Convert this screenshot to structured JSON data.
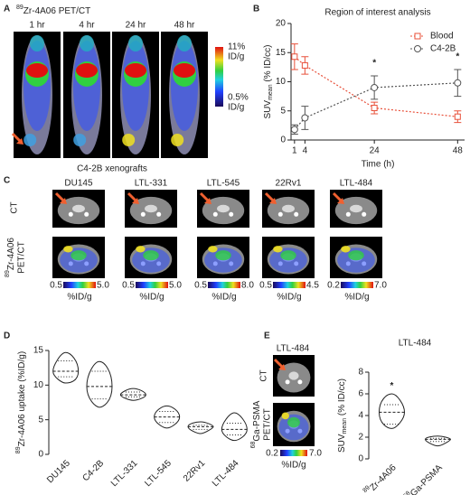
{
  "panel_a": {
    "letter": "A",
    "title_sup": "89",
    "title": "Zr-4A06 PET/CT",
    "timepoints": [
      "1 hr",
      "4 hr",
      "24 hr",
      "48 hr"
    ],
    "scale_max": "11%",
    "scale_max_unit": "ID/g",
    "scale_min": "0.5%",
    "scale_min_unit": "ID/g",
    "caption": "C4-2B xenografts"
  },
  "panel_c": {
    "letter": "C",
    "row_ct": "CT",
    "row_pet_sup": "89",
    "row_pet": "Zr-4A06",
    "row_pet2": "PET/CT",
    "columns": [
      {
        "name": "DU145",
        "scale_min": "0.5",
        "scale_max": "5.0",
        "unit": "%ID/g"
      },
      {
        "name": "LTL-331",
        "scale_min": "0.5",
        "scale_max": "5.0",
        "unit": "%ID/g"
      },
      {
        "name": "LTL-545",
        "scale_min": "0.5",
        "scale_max": "8.0",
        "unit": "%ID/g"
      },
      {
        "name": "22Rv1",
        "scale_min": "0.5",
        "scale_max": "4.5",
        "unit": "%ID/g"
      },
      {
        "name": "LTL-484",
        "scale_min": "0.2",
        "scale_max": "7.0",
        "unit": "%ID/g"
      }
    ]
  },
  "panel_e": {
    "letter": "E",
    "title": "LTL-484",
    "row_ct": "CT",
    "row_pet_sup": "68",
    "row_pet": "Ga-PSMA",
    "row_pet2": "PET/CT",
    "scale_min": "0.2",
    "scale_max": "7.0",
    "unit": "%ID/g"
  },
  "chart_data": [
    {
      "type": "line",
      "letter": "B",
      "title": "Region of interest analysis",
      "y_label": "SUV",
      "y_label_sub": "mean",
      "y_label_rest": " (% ID/cc)",
      "x_label": "Time (h)",
      "x": [
        1,
        4,
        24,
        48
      ],
      "xlim": [
        0,
        50
      ],
      "xticks": [
        1,
        4,
        24,
        48
      ],
      "ylim": [
        0,
        20
      ],
      "yticks": [
        0,
        5,
        10,
        15,
        20
      ],
      "legend": "upper right",
      "series": [
        {
          "name": "Blood",
          "color": "#e8503a",
          "marker": "square",
          "values": [
            14.3,
            12.8,
            5.5,
            4.0
          ],
          "errors": [
            2.2,
            1.5,
            1.0,
            1.0
          ]
        },
        {
          "name": "C4-2B",
          "color": "#555555",
          "marker": "circle",
          "values": [
            1.8,
            3.8,
            9.0,
            9.8
          ],
          "errors": [
            0.8,
            2.0,
            2.0,
            2.3
          ]
        }
      ],
      "annotations": [
        {
          "text": "*",
          "x": 24,
          "y": 13.2
        },
        {
          "text": "*",
          "x": 48,
          "y": 14.3
        }
      ]
    },
    {
      "type": "violin",
      "letter": "D",
      "y_label_sup": "89",
      "y_label": "Zr-4A06 uptake (%ID/g)",
      "categories": [
        "DU145",
        "C4-2B",
        "LTL-331",
        "LTL-545",
        "22Rv1",
        "LTL-484"
      ],
      "min": [
        10.3,
        6.8,
        7.8,
        3.8,
        3.0,
        2.0
      ],
      "q1": [
        11.2,
        8.0,
        8.3,
        4.6,
        3.6,
        2.8
      ],
      "median": [
        12.0,
        9.8,
        8.6,
        5.4,
        4.0,
        3.6
      ],
      "q3": [
        13.5,
        12.0,
        9.0,
        6.2,
        4.2,
        4.5
      ],
      "max": [
        14.7,
        13.4,
        9.5,
        7.0,
        4.7,
        6.0
      ],
      "ylim": [
        0,
        15
      ],
      "yticks": [
        0,
        5,
        10,
        15
      ],
      "color": "#222222"
    },
    {
      "type": "violin",
      "title": "LTL-484",
      "y_label": "SUV",
      "y_label_sub": "mean",
      "y_label_rest": " (% ID/cc)",
      "category_superscripts": [
        "89",
        "68"
      ],
      "categories": [
        "Zr-4A06",
        "Ga-PSMA"
      ],
      "min": [
        2.8,
        1.2
      ],
      "q1": [
        3.2,
        1.6
      ],
      "median": [
        4.3,
        1.8
      ],
      "q3": [
        5.0,
        1.9
      ],
      "max": [
        6.0,
        2.1
      ],
      "ylim": [
        0,
        8
      ],
      "yticks": [
        0,
        2,
        4,
        6,
        8
      ],
      "color": "#222222",
      "annotations": [
        {
          "text": "*",
          "category": 0,
          "y": 6.7
        }
      ]
    }
  ]
}
